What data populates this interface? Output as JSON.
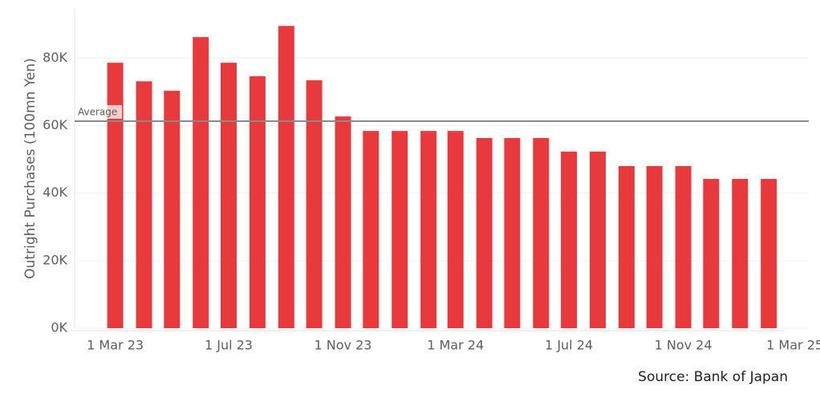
{
  "chart_data": {
    "type": "bar",
    "y_label": "Outright Purchases (100mn Yen)",
    "source": "Source: Bank of Japan",
    "x": [
      "2023-03-01",
      "2023-04-01",
      "2023-05-01",
      "2023-06-01",
      "2023-07-01",
      "2023-08-01",
      "2023-09-01",
      "2023-10-01",
      "2023-11-01",
      "2023-12-01",
      "2024-01-01",
      "2024-02-01",
      "2024-03-01",
      "2024-04-01",
      "2024-05-01",
      "2024-06-01",
      "2024-07-01",
      "2024-08-01",
      "2024-09-01",
      "2024-10-01",
      "2024-11-01",
      "2024-12-01",
      "2025-01-01",
      "2025-02-01"
    ],
    "values": [
      78600,
      73100,
      70300,
      86200,
      78600,
      74600,
      89500,
      73400,
      62700,
      58400,
      58400,
      58400,
      58400,
      56300,
      56300,
      56300,
      52300,
      52300,
      48000,
      48000,
      48000,
      44200,
      44200,
      44200
    ],
    "color": "#e8393c",
    "xlim": [
      "2023-01-12",
      "2025-03-16"
    ],
    "xticks": [
      {
        "value": "2023-03-01",
        "label": "1 Mar 23"
      },
      {
        "value": "2023-07-01",
        "label": "1 Jul 23"
      },
      {
        "value": "2023-11-01",
        "label": "1 Nov 23"
      },
      {
        "value": "2024-03-01",
        "label": "1 Mar 24"
      },
      {
        "value": "2024-07-01",
        "label": "1 Jul 24"
      },
      {
        "value": "2024-11-01",
        "label": "1 Nov 24"
      },
      {
        "value": "2025-03-01",
        "label": "1 Mar 25"
      }
    ],
    "ylim": [
      0,
      94800
    ],
    "yticks": [
      {
        "value": 0,
        "label": "0K"
      },
      {
        "value": 20000,
        "label": "20K"
      },
      {
        "value": 40000,
        "label": "40K"
      },
      {
        "value": 60000,
        "label": "60K"
      },
      {
        "value": 80000,
        "label": "80K"
      }
    ],
    "grid": true,
    "average": {
      "label": "Average",
      "value": 61300
    }
  }
}
